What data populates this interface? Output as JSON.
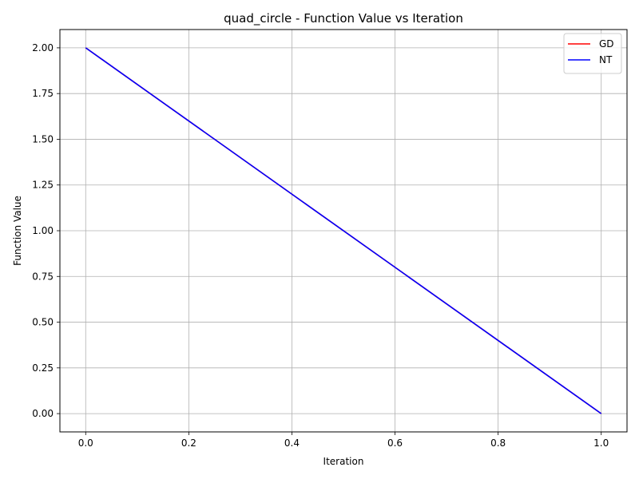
{
  "chart_data": {
    "type": "line",
    "title": "quad_circle - Function Value vs Iteration",
    "xlabel": "Iteration",
    "ylabel": "Function Value",
    "xlim": [
      -0.05,
      1.05
    ],
    "ylim": [
      -0.1,
      2.1
    ],
    "xticks": [
      0.0,
      0.2,
      0.4,
      0.6,
      0.8,
      1.0
    ],
    "xtick_labels": [
      "0.0",
      "0.2",
      "0.4",
      "0.6",
      "0.8",
      "1.0"
    ],
    "yticks": [
      0.0,
      0.25,
      0.5,
      0.75,
      1.0,
      1.25,
      1.5,
      1.75,
      2.0
    ],
    "ytick_labels": [
      "0.00",
      "0.25",
      "0.50",
      "0.75",
      "1.00",
      "1.25",
      "1.50",
      "1.75",
      "2.00"
    ],
    "grid": true,
    "legend_position": "top-right",
    "series": [
      {
        "name": "GD",
        "color": "#ff0000",
        "x": [
          0,
          1
        ],
        "y": [
          2.0,
          0.0
        ]
      },
      {
        "name": "NT",
        "color": "#0000ff",
        "x": [
          0,
          1
        ],
        "y": [
          2.0,
          0.0
        ]
      }
    ]
  }
}
